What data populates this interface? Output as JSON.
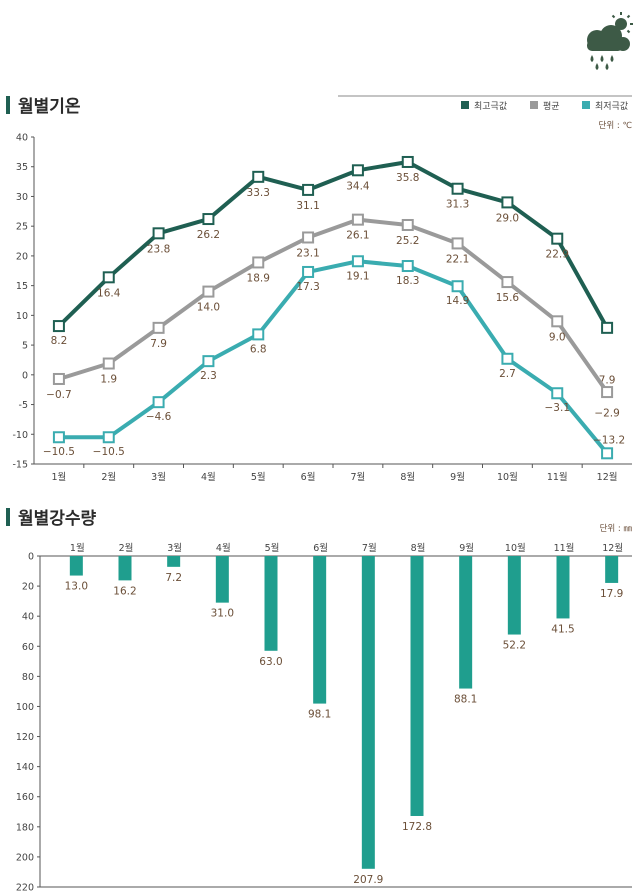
{
  "chart_data": [
    {
      "type": "line",
      "title": "월별기온",
      "unit_label": "단위 : ℃",
      "categories": [
        "1월",
        "2월",
        "3월",
        "4월",
        "5월",
        "6월",
        "7월",
        "8월",
        "9월",
        "10월",
        "11월",
        "12월"
      ],
      "ylim": [
        -15,
        40
      ],
      "yticks": [
        40,
        35,
        30,
        25,
        20,
        15,
        10,
        5,
        0,
        -5,
        -10,
        -15
      ],
      "grid": false,
      "legend_position": "top-right",
      "series": [
        {
          "name": "최고극값",
          "color": "#1f5f52",
          "values": [
            8.2,
            16.4,
            23.8,
            26.2,
            33.3,
            31.1,
            34.4,
            35.8,
            31.3,
            29.0,
            22.9,
            7.9
          ],
          "labels": [
            "8.2",
            "16.4",
            "23.8",
            "26.2",
            "33.3",
            "31.1",
            "34.4",
            "35.8",
            "31.3",
            "29.0",
            "22.9",
            "7.9"
          ]
        },
        {
          "name": "평균",
          "color": "#9a9a9a",
          "values": [
            -0.7,
            1.9,
            7.9,
            14.0,
            18.9,
            23.1,
            26.1,
            25.2,
            22.1,
            15.6,
            9.0,
            -2.9
          ],
          "labels": [
            "-0.7",
            "1.9",
            "7.9",
            "14.0",
            "18.9",
            "23.1",
            "26.1",
            "25.2",
            "22.1",
            "15.6",
            "9.0",
            "-2.9"
          ]
        },
        {
          "name": "최저극값",
          "color": "#3aacb0",
          "values": [
            -10.5,
            -10.5,
            -4.6,
            2.3,
            6.8,
            17.3,
            19.1,
            18.3,
            14.9,
            2.7,
            -3.1,
            -13.2
          ],
          "labels": [
            "-10.5",
            "-10.5",
            "-4.6",
            "2.3",
            "6.8",
            "17.3",
            "19.1",
            "18.3",
            "14.9",
            "2.7",
            "-3.1",
            "-13.2"
          ]
        }
      ]
    },
    {
      "type": "bar",
      "title": "월별강수량",
      "unit_label": "단위 : ㎜",
      "categories": [
        "1월",
        "2월",
        "3월",
        "4월",
        "5월",
        "6월",
        "7월",
        "8월",
        "9월",
        "10월",
        "11월",
        "12월"
      ],
      "values": [
        13.0,
        16.2,
        7.2,
        31.0,
        63.0,
        98.1,
        207.9,
        172.8,
        88.1,
        52.2,
        41.5,
        17.9
      ],
      "labels": [
        "13.0",
        "16.2",
        "7.2",
        "31.0",
        "63.0",
        "98.1",
        "207.9",
        "172.8",
        "88.1",
        "52.2",
        "41.5",
        "17.9"
      ],
      "ylim": [
        0,
        220
      ],
      "yticks": [
        0,
        20,
        40,
        60,
        80,
        100,
        120,
        140,
        160,
        180,
        200,
        220
      ],
      "y_inverted": true,
      "color": "#1f9e8e",
      "grid": false
    }
  ],
  "icon": "rain-cloud-sun-icon"
}
